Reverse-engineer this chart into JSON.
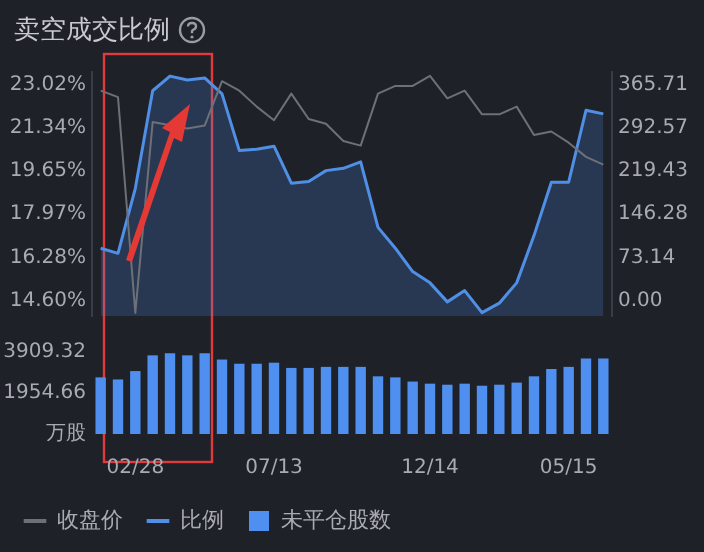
{
  "chart_data": [
    {
      "type": "line",
      "title": "卖空成交比例",
      "categories": [
        null,
        null,
        null,
        null,
        null,
        null,
        null,
        null,
        null,
        null,
        null,
        null,
        null,
        null,
        null,
        null,
        null,
        null,
        null,
        null,
        null,
        null,
        null,
        null,
        null,
        null,
        null,
        null,
        null,
        null
      ],
      "series": [
        {
          "name": "收盘价",
          "axis": "y2",
          "color": "#6e7078",
          "values": [
            355,
            344,
            -21,
            302,
            null,
            291,
            296,
            371,
            355,
            328,
            305,
            350,
            307,
            299,
            270,
            262,
            350,
            363,
            363,
            380,
            342,
            355,
            315,
            315,
            328,
            280,
            286,
            267,
            243,
            230
          ]
        },
        {
          "name": "比例",
          "type": "area",
          "color": "#4f8fe6",
          "values": [
            16.64,
            16.44,
            18.97,
            22.77,
            23.34,
            23.19,
            23.27,
            22.65,
            20.44,
            20.49,
            20.61,
            19.17,
            19.24,
            19.66,
            19.75,
            20.0,
            17.45,
            16.64,
            15.73,
            15.29,
            14.55,
            14.99,
            14.13,
            14.5,
            15.29,
            17.13,
            19.21,
            19.21,
            22.01,
            21.87
          ]
        }
      ],
      "ylim": [
        14.0,
        23.5
      ],
      "yticks": [
        {
          "value": 14.6,
          "label": "14.60%"
        },
        {
          "value": 16.28,
          "label": "16.28%"
        },
        {
          "value": 17.97,
          "label": "17.97%"
        },
        {
          "value": 19.65,
          "label": "19.65%"
        },
        {
          "value": 21.34,
          "label": "21.34%"
        },
        {
          "value": 23.02,
          "label": "23.02%"
        }
      ],
      "y2lim": [
        -26.06,
        386.56
      ],
      "y2ticks": [
        {
          "value": 0,
          "label": "0.00"
        },
        73.14,
        146.28,
        219.43,
        292.57,
        365.71
      ],
      "legend": "bottom",
      "marker": "none"
    },
    {
      "type": "bar",
      "categories": [
        null,
        null,
        "02/28",
        null,
        null,
        null,
        null,
        null,
        null,
        null,
        "07/13",
        null,
        null,
        null,
        null,
        null,
        null,
        null,
        null,
        "12/14",
        null,
        null,
        null,
        null,
        null,
        null,
        null,
        "05/15",
        null,
        null
      ],
      "series": [
        {
          "name": "未平仓股数",
          "color": "#4f8ff0",
          "values": [
            2700,
            2600,
            3000,
            3750,
            3850,
            3750,
            3850,
            3550,
            3350,
            3350,
            3400,
            3150,
            3150,
            3200,
            3200,
            3200,
            2750,
            2700,
            2500,
            2400,
            2350,
            2400,
            2300,
            2350,
            2450,
            2750,
            3100,
            3200,
            3600,
            3600
          ]
        }
      ],
      "ylim": [
        0,
        3909.32
      ],
      "yticks": [
        {
          "value": 0,
          "label": "万股"
        },
        1954.66,
        3909.32
      ],
      "legend": "bottom"
    }
  ]
}
